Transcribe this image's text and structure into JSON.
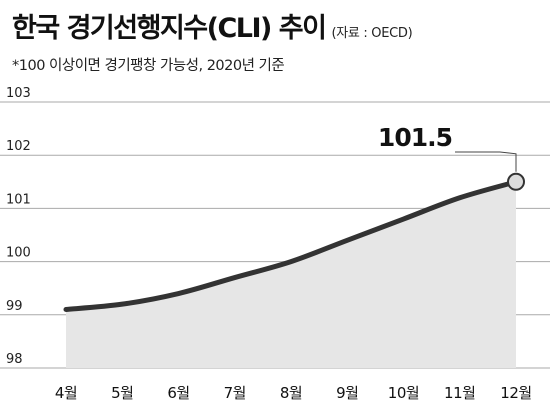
{
  "header": {
    "title": "한국 경기선행지수(CLI) 추이",
    "source": "(자료 : OECD)",
    "note": "*100 이상이면 경기팽창 가능성, 2020년 기준"
  },
  "colors": {
    "line": "#333333",
    "area": "#e6e6e6",
    "grid": "#aaaaaa",
    "marker_fill": "#dddddd"
  },
  "chart_data": {
    "type": "area",
    "title": "한국 경기선행지수(CLI) 추이",
    "subtitle": "*100 이상이면 경기팽창 가능성, 2020년 기준",
    "categories": [
      "4월",
      "5월",
      "6월",
      "7월",
      "8월",
      "9월",
      "10월",
      "11월",
      "12월"
    ],
    "series": [
      {
        "values": [
          99.1,
          99.2,
          99.4,
          99.7,
          100.0,
          100.4,
          100.8,
          101.2,
          101.5
        ]
      }
    ],
    "ylim": [
      98,
      103
    ],
    "yticks": [
      "98",
      "99",
      "100",
      "101",
      "102",
      "103"
    ],
    "grid": true,
    "annotation": {
      "category": "12월",
      "label": "101.5"
    }
  }
}
